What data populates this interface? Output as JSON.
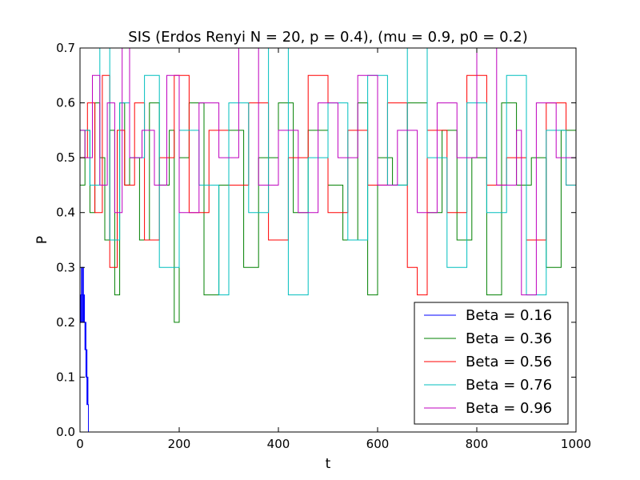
{
  "chart_data": {
    "type": "line",
    "title": "SIS (Erdos Renyi N = 20, p = 0.4), (mu = 0.9, p0 = 0.2)",
    "xlabel": "t",
    "ylabel": "P",
    "xlim": [
      0,
      1000
    ],
    "ylim": [
      0.0,
      0.7
    ],
    "xticks": [
      0,
      200,
      400,
      600,
      800,
      1000
    ],
    "yticks": [
      0.0,
      0.1,
      0.2,
      0.3,
      0.4,
      0.5,
      0.6,
      0.7
    ],
    "xtick_labels": [
      "0",
      "200",
      "400",
      "600",
      "800",
      "1000"
    ],
    "ytick_labels": [
      "0.0",
      "0.1",
      "0.2",
      "0.3",
      "0.4",
      "0.5",
      "0.6",
      "0.7"
    ],
    "grid": false,
    "legend_position": "lower right",
    "series": [
      {
        "name": "Beta = 0.16",
        "color": "#0000ff",
        "t": [
          0,
          1,
          2,
          3,
          4,
          5,
          6,
          7,
          8,
          9,
          10,
          11,
          12,
          13,
          14,
          15,
          16,
          17,
          18,
          19,
          20,
          30,
          60,
          100,
          200,
          400,
          600,
          800,
          1000
        ],
        "values": [
          0.2,
          0.25,
          0.2,
          0.3,
          0.25,
          0.2,
          0.3,
          0.2,
          0.25,
          0.2,
          0.15,
          0.2,
          0.1,
          0.15,
          0.05,
          0.1,
          0.05,
          0.0,
          0.0,
          0.0,
          0.0,
          0.0,
          0.0,
          0.0,
          0.0,
          0.0,
          0.0,
          0.0,
          0.0
        ]
      },
      {
        "name": "Beta = 0.36",
        "color": "#008000",
        "t": [
          0,
          10,
          20,
          30,
          40,
          50,
          60,
          70,
          80,
          90,
          100,
          120,
          140,
          160,
          180,
          190,
          200,
          220,
          250,
          280,
          300,
          330,
          360,
          400,
          430,
          460,
          500,
          530,
          560,
          580,
          600,
          630,
          660,
          700,
          730,
          760,
          790,
          820,
          850,
          880,
          910,
          940,
          970,
          1000
        ],
        "values": [
          0.45,
          0.55,
          0.4,
          0.6,
          0.5,
          0.35,
          0.55,
          0.25,
          0.6,
          0.45,
          0.5,
          0.35,
          0.6,
          0.45,
          0.55,
          0.2,
          0.5,
          0.6,
          0.25,
          0.45,
          0.55,
          0.3,
          0.5,
          0.6,
          0.4,
          0.55,
          0.45,
          0.35,
          0.6,
          0.25,
          0.5,
          0.45,
          0.6,
          0.4,
          0.55,
          0.35,
          0.5,
          0.25,
          0.6,
          0.45,
          0.5,
          0.3,
          0.55,
          0.4
        ]
      },
      {
        "name": "Beta = 0.56",
        "color": "#ff0000",
        "t": [
          0,
          15,
          30,
          45,
          60,
          75,
          90,
          110,
          130,
          160,
          190,
          220,
          260,
          300,
          340,
          380,
          420,
          460,
          500,
          540,
          580,
          620,
          660,
          680,
          700,
          740,
          780,
          820,
          860,
          900,
          940,
          980,
          1000
        ],
        "values": [
          0.5,
          0.6,
          0.4,
          0.65,
          0.3,
          0.55,
          0.45,
          0.6,
          0.35,
          0.5,
          0.65,
          0.4,
          0.55,
          0.45,
          0.6,
          0.35,
          0.5,
          0.65,
          0.4,
          0.55,
          0.45,
          0.6,
          0.3,
          0.25,
          0.55,
          0.4,
          0.65,
          0.45,
          0.5,
          0.35,
          0.6,
          0.45,
          0.5
        ]
      },
      {
        "name": "Beta = 0.76",
        "color": "#00bfbf",
        "t": [
          0,
          20,
          40,
          60,
          80,
          100,
          130,
          160,
          200,
          240,
          280,
          300,
          340,
          380,
          420,
          460,
          500,
          540,
          580,
          620,
          660,
          700,
          740,
          780,
          820,
          860,
          900,
          940,
          980,
          1000
        ],
        "values": [
          0.55,
          0.45,
          0.7,
          0.35,
          0.6,
          0.5,
          0.65,
          0.3,
          0.55,
          0.45,
          0.25,
          0.6,
          0.4,
          0.7,
          0.25,
          0.5,
          0.6,
          0.35,
          0.65,
          0.45,
          0.7,
          0.5,
          0.3,
          0.6,
          0.4,
          0.65,
          0.25,
          0.55,
          0.45,
          0.6
        ]
      },
      {
        "name": "Beta = 0.96",
        "color": "#bf00bf",
        "t": [
          0,
          10,
          25,
          40,
          55,
          70,
          85,
          100,
          125,
          150,
          175,
          200,
          240,
          280,
          320,
          360,
          400,
          440,
          480,
          520,
          560,
          600,
          640,
          680,
          720,
          760,
          800,
          840,
          880,
          890,
          920,
          960,
          1000
        ],
        "values": [
          0.55,
          0.5,
          0.65,
          0.45,
          0.6,
          0.4,
          0.7,
          0.5,
          0.55,
          0.45,
          0.65,
          0.4,
          0.6,
          0.5,
          0.7,
          0.45,
          0.55,
          0.4,
          0.6,
          0.5,
          0.65,
          0.45,
          0.55,
          0.4,
          0.6,
          0.5,
          0.7,
          0.45,
          0.55,
          0.25,
          0.6,
          0.5,
          0.55
        ]
      }
    ]
  }
}
